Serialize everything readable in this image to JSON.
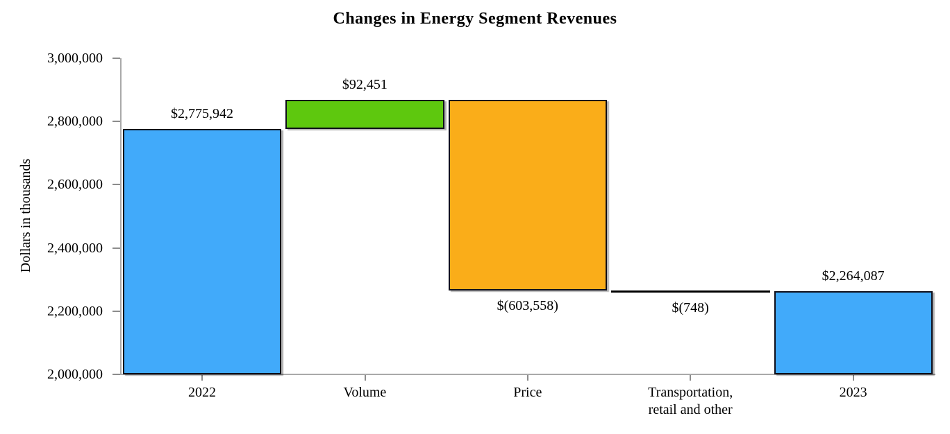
{
  "title": "Changes in Energy Segment Revenues",
  "y_axis": {
    "label": "Dollars in thousands",
    "min": 2000000,
    "max": 3000000,
    "tick_step": 200000,
    "ticks": [
      {
        "value": 3000000,
        "label": "3,000,000"
      },
      {
        "value": 2800000,
        "label": "2,800,000"
      },
      {
        "value": 2600000,
        "label": "2,600,000"
      },
      {
        "value": 2400000,
        "label": "2,400,000"
      },
      {
        "value": 2200000,
        "label": "2,200,000"
      },
      {
        "value": 2000000,
        "label": "2,000,000"
      }
    ]
  },
  "colors": {
    "total_bar": "#41aafa",
    "increase_bar": "#5ec80e",
    "decrease_bar": "#faad19",
    "flat_bar": "#000000",
    "bar_border": "#0e0e1a",
    "axis_line": "#a9a9a9"
  },
  "chart_data": {
    "type": "bar",
    "subtype": "waterfall",
    "title": "Changes in Energy Segment Revenues",
    "ylabel": "Dollars in thousands",
    "ylim": [
      2000000,
      3000000
    ],
    "grid": false,
    "legend": false,
    "categories": [
      "2022",
      "Volume",
      "Price",
      "Transportation,\nretail and other",
      "2023"
    ],
    "bars": [
      {
        "category": "2022",
        "label": "$2,775,942",
        "value": 2775942,
        "start": 2000000,
        "end": 2775942,
        "color": "#41aafa",
        "label_position": "above",
        "style": "column"
      },
      {
        "category": "Volume",
        "label": "$92,451",
        "value": 92451,
        "start": 2775942,
        "end": 2868393,
        "color": "#5ec80e",
        "label_position": "above",
        "style": "column"
      },
      {
        "category": "Price",
        "label": "$(603,558)",
        "value": -603558,
        "start": 2868393,
        "end": 2264835,
        "color": "#faad19",
        "label_position": "below",
        "style": "column"
      },
      {
        "category": "Transportation,\nretail and other",
        "label": "$(748)",
        "value": -748,
        "start": 2264835,
        "end": 2264087,
        "color": "#000000",
        "label_position": "below",
        "style": "line"
      },
      {
        "category": "2023",
        "label": "$2,264,087",
        "value": 2264087,
        "start": 2000000,
        "end": 2264087,
        "color": "#41aafa",
        "label_position": "above",
        "style": "column"
      }
    ]
  }
}
